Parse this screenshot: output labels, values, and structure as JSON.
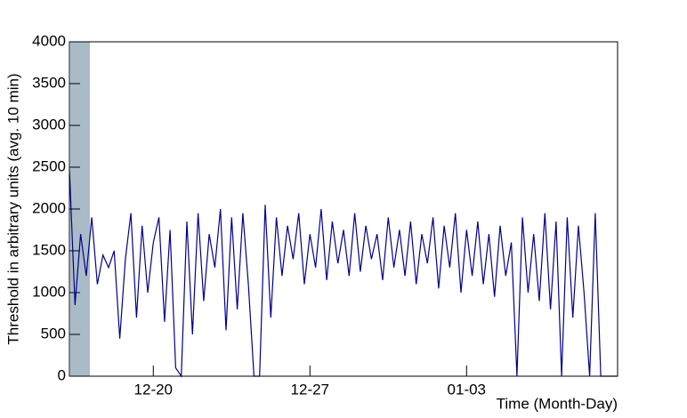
{
  "chart_data": {
    "type": "line",
    "ylabel": "Threshold in arbitrary units (avg. 10 min)",
    "xlabel": "Time (Month-Day)",
    "ylim": [
      0,
      4000
    ],
    "yticks": [
      0,
      500,
      1000,
      1500,
      2000,
      2500,
      3000,
      3500,
      4000
    ],
    "color": "#00008b",
    "categories": [
      null,
      null,
      null,
      null,
      null,
      null,
      null,
      null,
      null,
      null,
      null,
      null,
      null,
      null,
      null,
      "12-20",
      null,
      null,
      null,
      null,
      null,
      null,
      null,
      null,
      null,
      null,
      null,
      null,
      null,
      null,
      null,
      null,
      null,
      null,
      null,
      null,
      null,
      null,
      null,
      null,
      null,
      null,
      null,
      "12-27",
      null,
      null,
      null,
      null,
      null,
      null,
      null,
      null,
      null,
      null,
      null,
      null,
      null,
      null,
      null,
      null,
      null,
      null,
      null,
      null,
      null,
      null,
      null,
      null,
      null,
      null,
      null,
      "01-03",
      null,
      null,
      null,
      null,
      null,
      null,
      null,
      null,
      null,
      null,
      null,
      null,
      null,
      null,
      null,
      null,
      null,
      null,
      null,
      null,
      null,
      null,
      null,
      null,
      null,
      null,
      null
    ],
    "values": [
      2480,
      850,
      1700,
      1200,
      1900,
      1100,
      1450,
      1300,
      1500,
      450,
      1400,
      1950,
      700,
      1800,
      1000,
      1600,
      1900,
      650,
      1750,
      100,
      0,
      1850,
      500,
      1950,
      900,
      1700,
      1300,
      2000,
      550,
      1900,
      800,
      1950,
      1100,
      0,
      0,
      2050,
      700,
      1900,
      1200,
      1800,
      1400,
      1950,
      1100,
      1700,
      1300,
      2000,
      1150,
      1850,
      1350,
      1750,
      1200,
      1950,
      1250,
      1800,
      1400,
      1700,
      1150,
      1900,
      1300,
      1750,
      1200,
      1850,
      1100,
      1700,
      1350,
      1900,
      1050,
      1800,
      1300,
      1950,
      1000,
      1750,
      1200,
      1850,
      1100,
      1700,
      950,
      1800,
      1200,
      1600,
      0,
      1900,
      1000,
      1700,
      900,
      1950,
      800,
      1850,
      0,
      1900,
      700,
      1800,
      1000,
      0,
      1950,
      0,
      0,
      0,
      0
    ]
  }
}
